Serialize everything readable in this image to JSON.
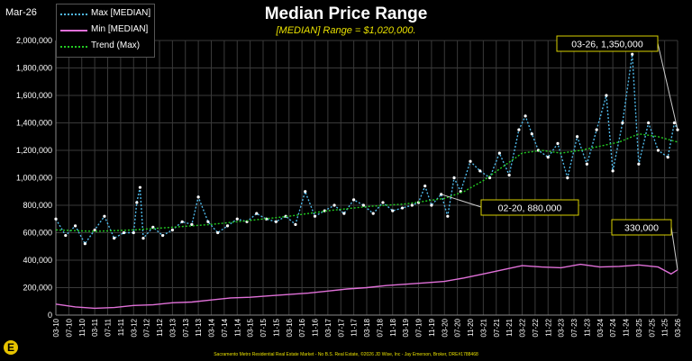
{
  "header": {
    "date_label": "Mar-26",
    "title": "Median Price Range",
    "subtitle": "[MEDIAN] Range = $1,020,000."
  },
  "legend": {
    "items": [
      {
        "label": "Max [MEDIAN]",
        "color": "#4fb8e8"
      },
      {
        "label": "Min [MEDIAN]",
        "color": "#e070d8"
      },
      {
        "label": "Trend (Max)",
        "color": "#22cc22"
      }
    ]
  },
  "footer": {
    "text": "Sacramento Metro Residential Real Estate Market - No B.S. Real Estate, ©2026 JD Wise, Inc - Jay Emerson, Broker, DRE#1788468",
    "logo_letter": "E"
  },
  "chart_data": {
    "type": "line",
    "x_range": [
      "2010-03",
      "2026-03"
    ],
    "ylim": [
      0,
      2000000
    ],
    "y_ticks": [
      "0",
      "200,000",
      "400,000",
      "600,000",
      "800,000",
      "1,000,000",
      "1,200,000",
      "1,400,000",
      "1,600,000",
      "1,800,000",
      "2,000,000"
    ],
    "x_ticks": [
      "03-10",
      "07-10",
      "11-10",
      "03-11",
      "07-11",
      "11-11",
      "03-12",
      "07-12",
      "11-12",
      "03-13",
      "07-13",
      "11-13",
      "03-14",
      "07-14",
      "11-14",
      "03-15",
      "07-15",
      "11-15",
      "03-16",
      "07-16",
      "11-16",
      "03-17",
      "07-17",
      "11-17",
      "03-18",
      "07-18",
      "11-18",
      "03-19",
      "07-19",
      "11-19",
      "03-20",
      "07-20",
      "11-20",
      "03-21",
      "07-21",
      "11-21",
      "03-22",
      "07-22",
      "11-22",
      "03-23",
      "07-23",
      "11-23",
      "03-24",
      "07-24",
      "11-24",
      "03-25",
      "07-25",
      "11-25",
      "03-26"
    ],
    "grid": true,
    "legend_position": "top-left",
    "series": [
      {
        "name": "Max [MEDIAN]",
        "color": "#4fb8e8",
        "marker_color": "#ffffff",
        "points": [
          [
            "2010-03",
            700000
          ],
          [
            "2010-06",
            580000
          ],
          [
            "2010-09",
            650000
          ],
          [
            "2010-12",
            520000
          ],
          [
            "2011-03",
            620000
          ],
          [
            "2011-06",
            720000
          ],
          [
            "2011-09",
            560000
          ],
          [
            "2011-12",
            600000
          ],
          [
            "2012-03",
            600000
          ],
          [
            "2012-04",
            820000
          ],
          [
            "2012-05",
            930000
          ],
          [
            "2012-06",
            560000
          ],
          [
            "2012-09",
            640000
          ],
          [
            "2012-12",
            580000
          ],
          [
            "2013-03",
            620000
          ],
          [
            "2013-06",
            680000
          ],
          [
            "2013-09",
            660000
          ],
          [
            "2013-11",
            860000
          ],
          [
            "2014-02",
            680000
          ],
          [
            "2014-05",
            600000
          ],
          [
            "2014-08",
            650000
          ],
          [
            "2014-11",
            700000
          ],
          [
            "2015-02",
            680000
          ],
          [
            "2015-05",
            740000
          ],
          [
            "2015-08",
            700000
          ],
          [
            "2015-11",
            680000
          ],
          [
            "2016-02",
            720000
          ],
          [
            "2016-05",
            660000
          ],
          [
            "2016-08",
            900000
          ],
          [
            "2016-11",
            720000
          ],
          [
            "2017-02",
            760000
          ],
          [
            "2017-05",
            800000
          ],
          [
            "2017-08",
            740000
          ],
          [
            "2017-11",
            840000
          ],
          [
            "2018-02",
            800000
          ],
          [
            "2018-05",
            740000
          ],
          [
            "2018-08",
            820000
          ],
          [
            "2018-11",
            760000
          ],
          [
            "2019-02",
            780000
          ],
          [
            "2019-05",
            800000
          ],
          [
            "2019-07",
            820000
          ],
          [
            "2019-09",
            940000
          ],
          [
            "2019-11",
            800000
          ],
          [
            "2020-02",
            880000
          ],
          [
            "2020-04",
            720000
          ],
          [
            "2020-06",
            1000000
          ],
          [
            "2020-08",
            900000
          ],
          [
            "2020-11",
            1120000
          ],
          [
            "2021-02",
            1050000
          ],
          [
            "2021-05",
            1000000
          ],
          [
            "2021-08",
            1180000
          ],
          [
            "2021-11",
            1020000
          ],
          [
            "2022-02",
            1350000
          ],
          [
            "2022-04",
            1450000
          ],
          [
            "2022-06",
            1320000
          ],
          [
            "2022-08",
            1200000
          ],
          [
            "2022-11",
            1150000
          ],
          [
            "2023-02",
            1250000
          ],
          [
            "2023-05",
            1000000
          ],
          [
            "2023-08",
            1300000
          ],
          [
            "2023-11",
            1100000
          ],
          [
            "2024-02",
            1350000
          ],
          [
            "2024-05",
            1600000
          ],
          [
            "2024-07",
            1050000
          ],
          [
            "2024-10",
            1400000
          ],
          [
            "2025-01",
            1900000
          ],
          [
            "2025-03",
            1100000
          ],
          [
            "2025-06",
            1400000
          ],
          [
            "2025-09",
            1200000
          ],
          [
            "2025-12",
            1150000
          ],
          [
            "2026-02",
            1400000
          ],
          [
            "2026-03",
            1350000
          ]
        ]
      },
      {
        "name": "Min [MEDIAN]",
        "color": "#e070d8",
        "points": [
          [
            "2010-03",
            80000
          ],
          [
            "2010-09",
            60000
          ],
          [
            "2011-03",
            50000
          ],
          [
            "2011-09",
            55000
          ],
          [
            "2012-03",
            70000
          ],
          [
            "2012-09",
            75000
          ],
          [
            "2013-03",
            90000
          ],
          [
            "2013-09",
            95000
          ],
          [
            "2014-03",
            110000
          ],
          [
            "2014-09",
            125000
          ],
          [
            "2015-03",
            130000
          ],
          [
            "2015-09",
            140000
          ],
          [
            "2016-03",
            150000
          ],
          [
            "2016-09",
            160000
          ],
          [
            "2017-03",
            175000
          ],
          [
            "2017-09",
            190000
          ],
          [
            "2018-03",
            200000
          ],
          [
            "2018-09",
            215000
          ],
          [
            "2019-03",
            225000
          ],
          [
            "2019-09",
            235000
          ],
          [
            "2020-03",
            245000
          ],
          [
            "2020-09",
            270000
          ],
          [
            "2021-03",
            300000
          ],
          [
            "2021-09",
            330000
          ],
          [
            "2022-03",
            360000
          ],
          [
            "2022-09",
            350000
          ],
          [
            "2023-03",
            345000
          ],
          [
            "2023-09",
            370000
          ],
          [
            "2024-03",
            350000
          ],
          [
            "2024-09",
            355000
          ],
          [
            "2025-03",
            365000
          ],
          [
            "2025-09",
            350000
          ],
          [
            "2026-01",
            300000
          ],
          [
            "2026-03",
            330000
          ]
        ]
      },
      {
        "name": "Trend (Max)",
        "color": "#22cc22",
        "points": [
          [
            "2010-03",
            620000
          ],
          [
            "2011-03",
            610000
          ],
          [
            "2012-03",
            620000
          ],
          [
            "2013-03",
            640000
          ],
          [
            "2014-03",
            660000
          ],
          [
            "2015-03",
            690000
          ],
          [
            "2016-03",
            720000
          ],
          [
            "2017-03",
            760000
          ],
          [
            "2018-03",
            790000
          ],
          [
            "2019-03",
            810000
          ],
          [
            "2020-03",
            850000
          ],
          [
            "2020-09",
            900000
          ],
          [
            "2021-03",
            980000
          ],
          [
            "2021-09",
            1080000
          ],
          [
            "2022-03",
            1180000
          ],
          [
            "2022-09",
            1200000
          ],
          [
            "2023-03",
            1180000
          ],
          [
            "2023-09",
            1200000
          ],
          [
            "2024-03",
            1230000
          ],
          [
            "2024-09",
            1260000
          ],
          [
            "2025-03",
            1320000
          ],
          [
            "2025-09",
            1300000
          ],
          [
            "2026-03",
            1260000
          ]
        ]
      }
    ],
    "annotations": [
      {
        "date": "03-26,",
        "value": "1,350,000",
        "target": [
          "2026-03",
          1350000
        ]
      },
      {
        "date": "02-20,",
        "value": "880,000",
        "target": [
          "2020-02",
          880000
        ]
      },
      {
        "date": "",
        "value": "330,000",
        "target": [
          "2026-03",
          330000
        ]
      }
    ]
  }
}
